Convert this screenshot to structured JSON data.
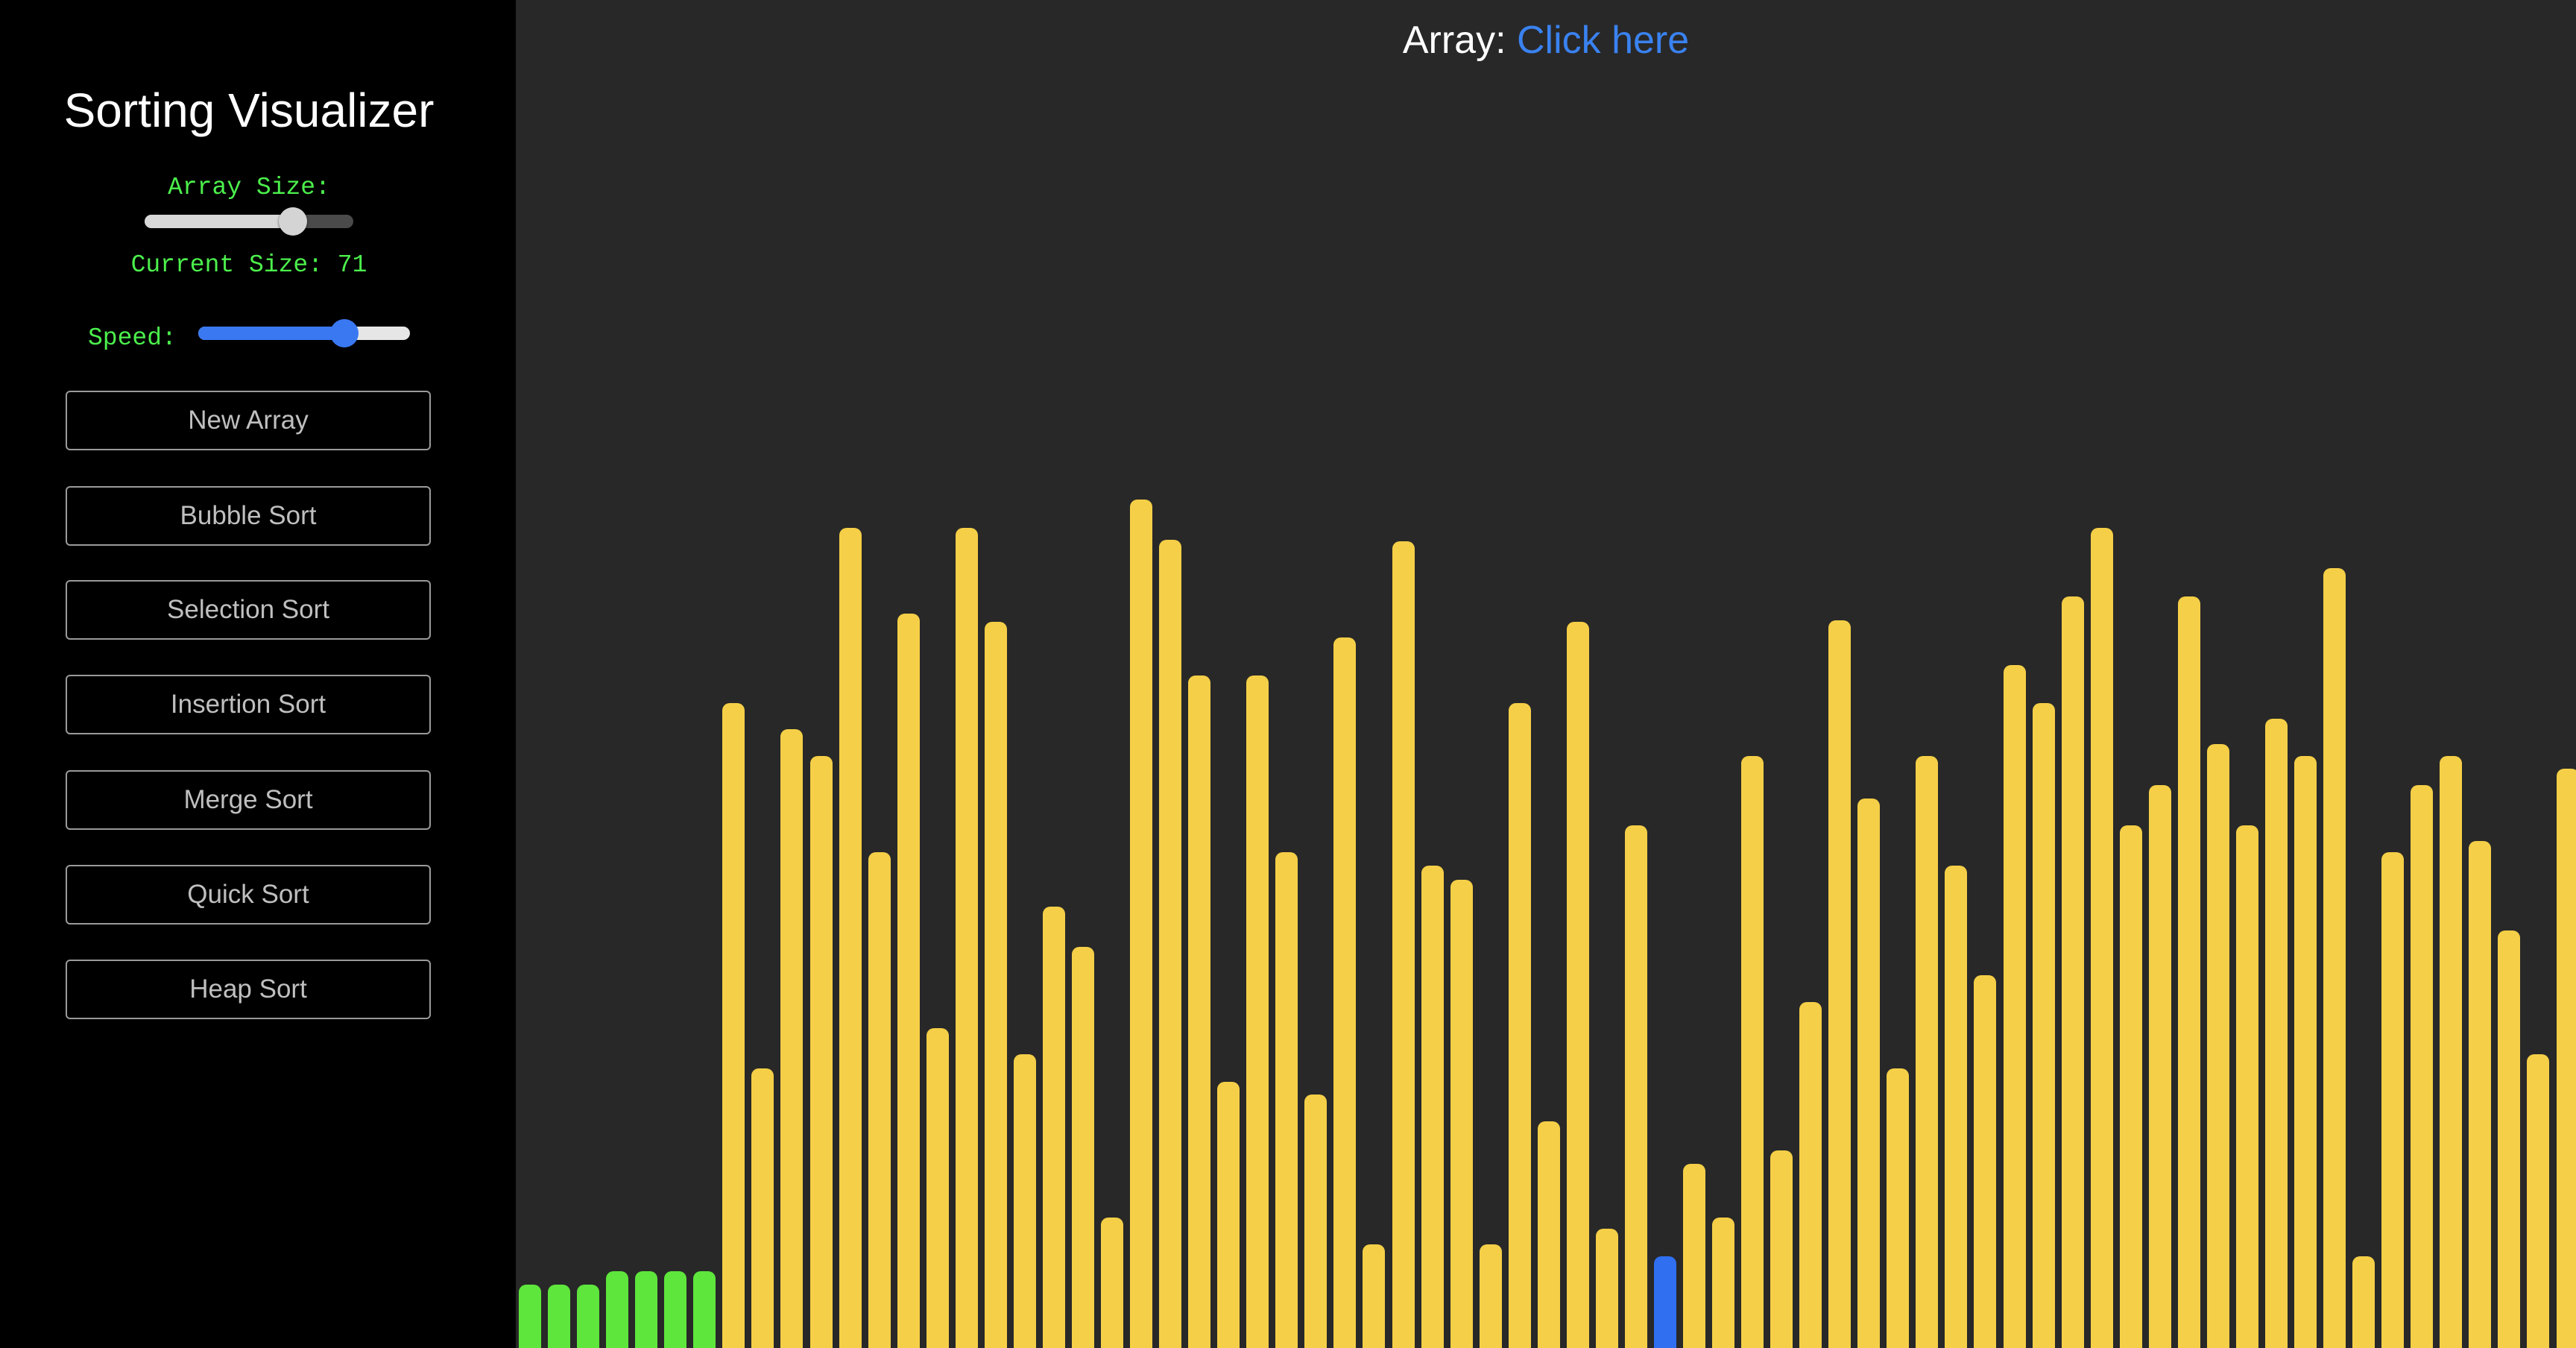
{
  "sidebar": {
    "title": "Sorting Visualizer",
    "array_size_label": "Array Size:",
    "array_size_value": 71,
    "array_size_max": 100,
    "current_size_text": "Current Size: 71",
    "speed_label": "Speed:",
    "speed_fraction": 0.69,
    "buttons": {
      "new_array": "New Array",
      "bubble_sort": "Bubble Sort",
      "selection_sort": "Selection Sort",
      "insertion_sort": "Insertion Sort",
      "merge_sort": "Merge Sort",
      "quick_sort": "Quick Sort",
      "heap_sort": "Heap Sort"
    }
  },
  "main": {
    "array_label": "Array:",
    "array_link": "Click here"
  },
  "colors": {
    "sorted": "#5ee63c",
    "unsorted": "#f5cf47",
    "active": "#2f6ff0",
    "background": "#282828",
    "sidebar": "#000000",
    "label_green": "#4cf04c",
    "link_blue": "#3a82f0"
  },
  "bars": {
    "max_value": 1808,
    "values": [
      85,
      85,
      85,
      103,
      103,
      103,
      103,
      865,
      375,
      830,
      794,
      1100,
      665,
      985,
      429,
      1100,
      974,
      394,
      592,
      538,
      175,
      1138,
      1084,
      902,
      357,
      902,
      665,
      340,
      953,
      139,
      1082,
      647,
      628,
      139,
      865,
      304,
      974,
      160,
      701,
      123,
      247,
      175,
      794,
      265,
      464,
      976,
      737,
      375,
      794,
      647,
      500,
      916,
      865,
      1008,
      1100,
      701,
      755,
      1008,
      810,
      701,
      844,
      794,
      1046,
      123,
      665,
      755,
      794,
      680,
      560,
      394,
      777
    ],
    "states": [
      "sorted",
      "sorted",
      "sorted",
      "sorted",
      "sorted",
      "sorted",
      "sorted",
      "unsorted",
      "unsorted",
      "unsorted",
      "unsorted",
      "unsorted",
      "unsorted",
      "unsorted",
      "unsorted",
      "unsorted",
      "unsorted",
      "unsorted",
      "unsorted",
      "unsorted",
      "unsorted",
      "unsorted",
      "unsorted",
      "unsorted",
      "unsorted",
      "unsorted",
      "unsorted",
      "unsorted",
      "unsorted",
      "unsorted",
      "unsorted",
      "unsorted",
      "unsorted",
      "unsorted",
      "unsorted",
      "unsorted",
      "unsorted",
      "unsorted",
      "unsorted",
      "active",
      "unsorted",
      "unsorted",
      "unsorted",
      "unsorted",
      "unsorted",
      "unsorted",
      "unsorted",
      "unsorted",
      "unsorted",
      "unsorted",
      "unsorted",
      "unsorted",
      "unsorted",
      "unsorted",
      "unsorted",
      "unsorted",
      "unsorted",
      "unsorted",
      "unsorted",
      "unsorted",
      "unsorted",
      "unsorted",
      "unsorted",
      "unsorted",
      "unsorted",
      "unsorted",
      "unsorted",
      "unsorted",
      "unsorted",
      "unsorted",
      "unsorted"
    ]
  }
}
